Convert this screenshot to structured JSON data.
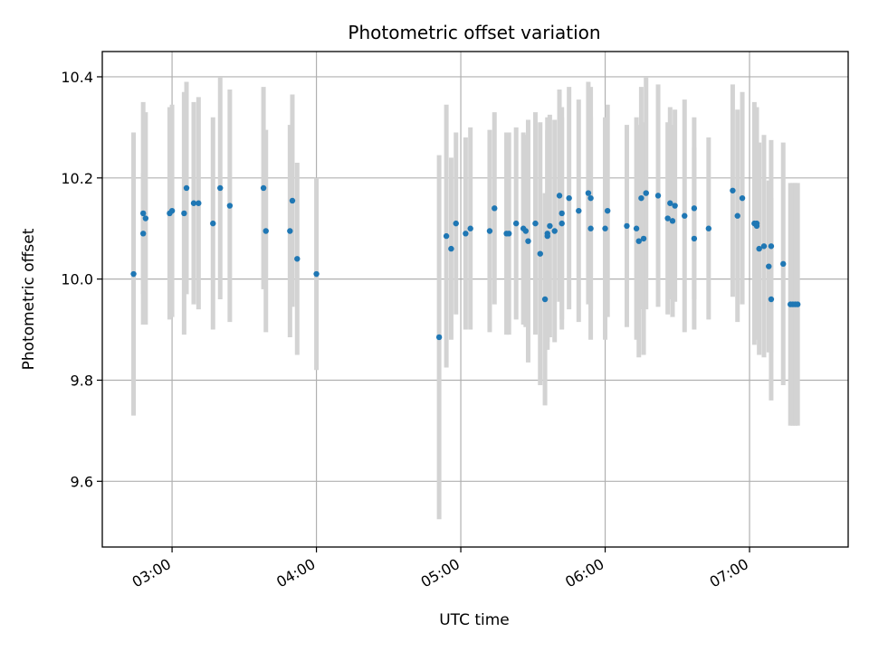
{
  "chart_data": {
    "type": "scatter",
    "title": "Photometric offset variation",
    "xlabel": "UTC time",
    "ylabel": "Photometric offset",
    "x_ticks": [
      "03:00",
      "04:00",
      "05:00",
      "06:00",
      "07:00"
    ],
    "y_ticks": [
      "9.6",
      "9.8",
      "10.0",
      "10.2",
      "10.4"
    ],
    "xlim": [
      "02:31",
      "07:41"
    ],
    "ylim": [
      9.47,
      10.45
    ],
    "grid": true,
    "marker_color": "#1f77b4",
    "errorbar_color": "#d3d3d3",
    "series": [
      {
        "x": [
          "02:44",
          "02:48",
          "02:48",
          "02:49",
          "02:59",
          "03:00",
          "03:05",
          "03:06",
          "03:09",
          "03:11",
          "03:17",
          "03:20",
          "03:24",
          "03:38",
          "03:39",
          "03:49",
          "03:50",
          "03:52",
          "04:00",
          "04:51",
          "04:54",
          "04:56",
          "04:58",
          "05:02",
          "05:04",
          "05:12",
          "05:14",
          "05:19",
          "05:20",
          "05:23",
          "05:26",
          "05:27",
          "05:28",
          "05:31",
          "05:33",
          "05:35",
          "05:36",
          "05:36",
          "05:37",
          "05:39",
          "05:41",
          "05:42",
          "05:42",
          "05:45",
          "05:49",
          "05:53",
          "05:54",
          "05:54",
          "06:00",
          "06:01",
          "06:09",
          "06:13",
          "06:14",
          "06:15",
          "06:16",
          "06:17",
          "06:22",
          "06:26",
          "06:27",
          "06:28",
          "06:29",
          "06:33",
          "06:37",
          "06:37",
          "06:43",
          "06:53",
          "06:55",
          "06:57",
          "07:02",
          "07:03",
          "07:03",
          "07:04",
          "07:06",
          "07:08",
          "07:09",
          "07:09",
          "07:14",
          "07:17",
          "07:18",
          "07:19",
          "07:20"
        ],
        "y": [
          10.01,
          10.09,
          10.13,
          10.12,
          10.13,
          10.135,
          10.13,
          10.18,
          10.15,
          10.15,
          10.11,
          10.18,
          10.145,
          10.18,
          10.095,
          10.095,
          10.155,
          10.04,
          10.01,
          9.885,
          10.085,
          10.06,
          10.11,
          10.09,
          10.1,
          10.095,
          10.14,
          10.09,
          10.09,
          10.11,
          10.1,
          10.095,
          10.075,
          10.11,
          10.05,
          9.96,
          10.09,
          10.085,
          10.105,
          10.095,
          10.165,
          10.11,
          10.13,
          10.16,
          10.135,
          10.17,
          10.16,
          10.1,
          10.1,
          10.135,
          10.105,
          10.1,
          10.075,
          10.16,
          10.08,
          10.17,
          10.165,
          10.12,
          10.15,
          10.115,
          10.145,
          10.125,
          10.08,
          10.14,
          10.1,
          10.175,
          10.125,
          10.16,
          10.11,
          10.11,
          10.105,
          10.06,
          10.065,
          10.025,
          10.065,
          9.96,
          10.03,
          9.95,
          9.95,
          9.95,
          9.95
        ],
        "err": [
          0.28,
          0.12,
          0.22,
          0.21,
          0.21,
          0.21,
          0.24,
          0.21,
          0.2,
          0.21,
          0.21,
          0.22,
          0.23,
          0.2,
          0.2,
          0.21,
          0.21,
          0.19,
          0.19,
          0.36,
          0.26,
          0.18,
          0.18,
          0.19,
          0.2,
          0.2,
          0.19,
          0.2,
          0.2,
          0.19,
          0.19,
          0.19,
          0.24,
          0.22,
          0.26,
          0.21,
          0.23,
          0.21,
          0.22,
          0.22,
          0.21,
          0.21,
          0.21,
          0.22,
          0.22,
          0.22,
          0.22,
          0.22,
          0.22,
          0.21,
          0.2,
          0.22,
          0.23,
          0.22,
          0.23,
          0.23,
          0.22,
          0.19,
          0.19,
          0.19,
          0.19,
          0.23,
          0.18,
          0.18,
          0.18,
          0.21,
          0.21,
          0.21,
          0.24,
          0.23,
          0.21,
          0.21,
          0.22,
          0.17,
          0.21,
          0.2,
          0.24,
          0.24,
          0.24,
          0.24,
          0.24
        ]
      }
    ]
  }
}
